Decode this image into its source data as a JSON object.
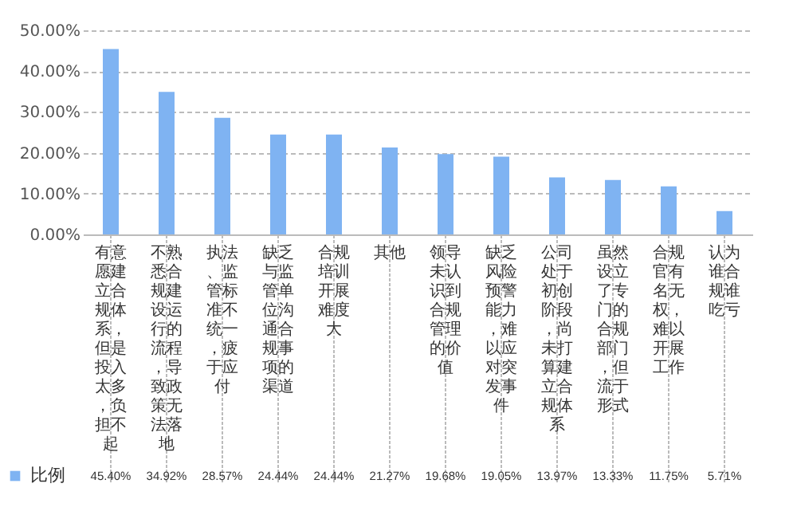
{
  "chart_data": {
    "type": "bar",
    "categories": [
      "有意愿建立合规体系，但是投入太多，负担不起",
      "不熟悉合规建设运行的流程，导致政策无法落地",
      "执法、监管标准不统一，疲于应付",
      "缺乏与监管单位沟通合规事项的渠道",
      "合规培训开展难度大",
      "其他",
      "领导未认识到合规管理的价值",
      "缺乏风险预警能力，难以应对突发事件",
      "公司处于初创阶段，尚未打算建立合规体系",
      "虽然设立了专门的合规部门，但流于形式",
      "合规官有名无权，难以开展工作",
      "认为谁合规谁吃亏"
    ],
    "series": [
      {
        "name": "比例",
        "color": "#7fb3f2",
        "values": [
          45.4,
          34.92,
          28.57,
          24.44,
          24.44,
          21.27,
          19.68,
          19.05,
          13.97,
          13.33,
          11.75,
          5.71
        ],
        "value_labels": [
          "45.40%",
          "34.92%",
          "28.57%",
          "24.44%",
          "24.44%",
          "21.27%",
          "19.68%",
          "19.05%",
          "13.97%",
          "13.33%",
          "11.75%",
          "5.71%"
        ]
      }
    ],
    "ylim": [
      0,
      50
    ],
    "yticks": [
      {
        "value": 0,
        "label": "0.00%"
      },
      {
        "value": 10,
        "label": "10.00%"
      },
      {
        "value": 20,
        "label": "20.00%"
      },
      {
        "value": 30,
        "label": "30.00%"
      },
      {
        "value": 40,
        "label": "40.00%"
      },
      {
        "value": 50,
        "label": "50.00%"
      }
    ],
    "grid": "y",
    "legend": "bottom left"
  }
}
